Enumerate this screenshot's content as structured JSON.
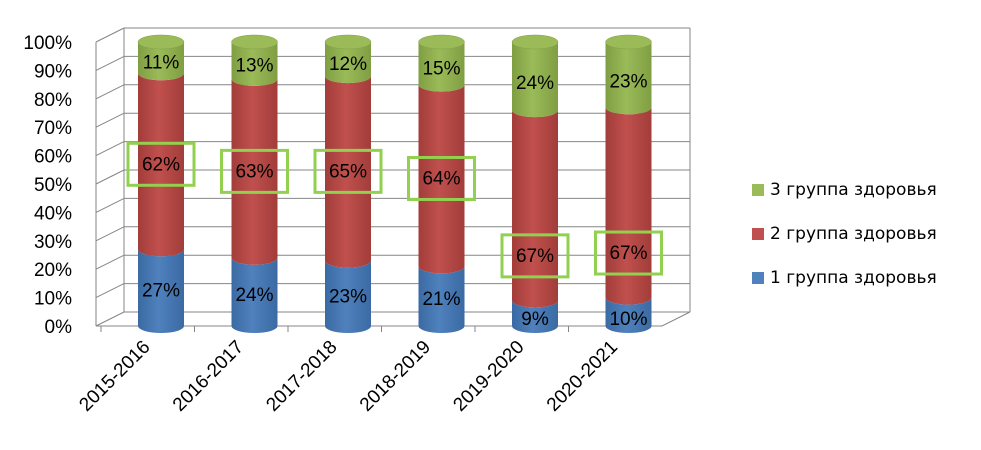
{
  "chart_data": {
    "type": "bar",
    "stacked": true,
    "percent": true,
    "title": "",
    "xlabel": "",
    "ylabel": "",
    "ylim": [
      0,
      100
    ],
    "yticks": [
      "0%",
      "10%",
      "20%",
      "30%",
      "40%",
      "50%",
      "60%",
      "70%",
      "80%",
      "90%",
      "100%"
    ],
    "categories": [
      "2015-2016",
      "2016-2017",
      "2017-2018",
      "2018-2019",
      "2019-2020",
      "2020-2021"
    ],
    "series": [
      {
        "name": "1 группа здоровья",
        "color": "#4f81bd",
        "dark": "#3b6aa3",
        "values": [
          27,
          24,
          23,
          21,
          9,
          10
        ],
        "labels": [
          "27%",
          "24%",
          "23%",
          "21%",
          "9%",
          "10%"
        ]
      },
      {
        "name": "2 группа здоровья",
        "color": "#c0504d",
        "dark": "#a23d3a",
        "values": [
          62,
          63,
          65,
          64,
          67,
          67
        ],
        "labels": [
          "62%",
          "63%",
          "65%",
          "64%",
          "67%",
          "67%"
        ],
        "highlight": "#92d050"
      },
      {
        "name": "3 группа здоровья",
        "color": "#9bbb59",
        "dark": "#7f9e42",
        "values": [
          11,
          13,
          12,
          15,
          24,
          23
        ],
        "labels": [
          "11%",
          "13%",
          "12%",
          "15%",
          "24%",
          "23%"
        ]
      }
    ],
    "legend_position": "right",
    "grid": true
  }
}
